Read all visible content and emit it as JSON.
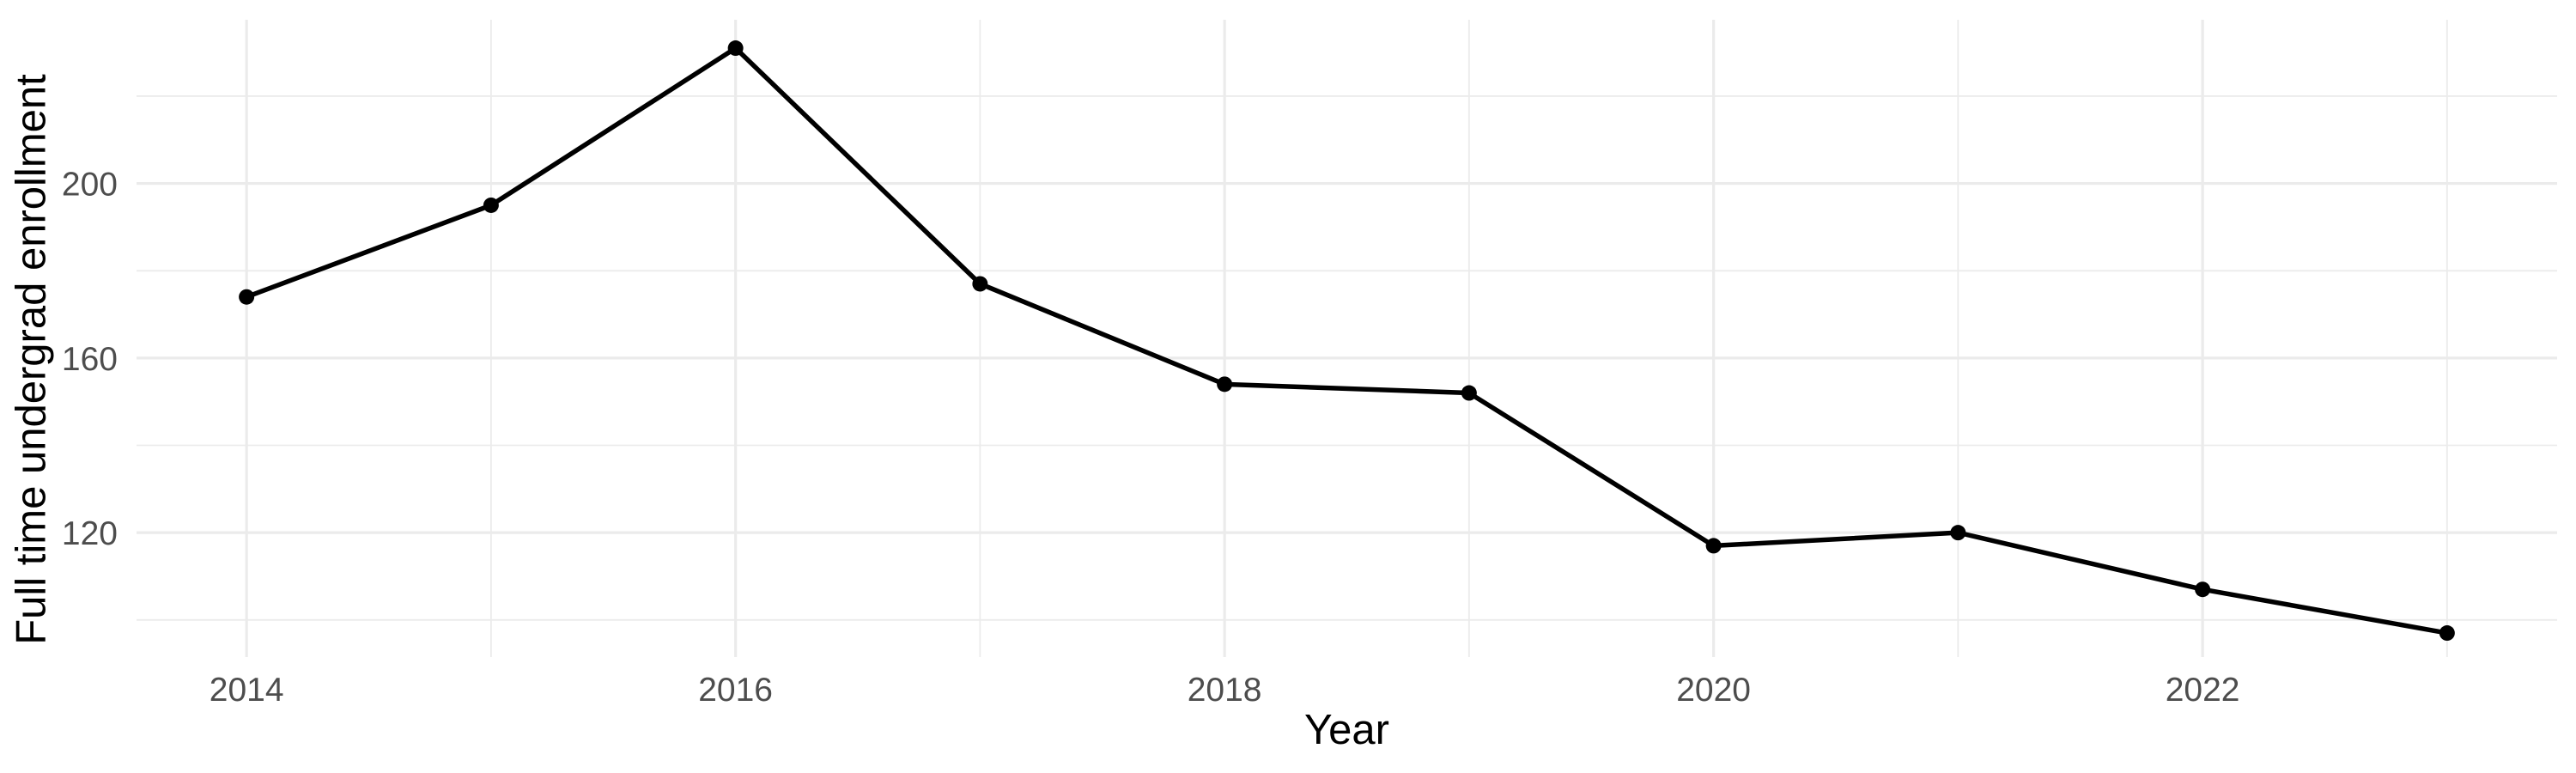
{
  "chart_data": {
    "type": "line",
    "title": "",
    "xlabel": "Year",
    "ylabel": "Full time undergrad enrollment",
    "series": [
      {
        "name": "Full time undergrad enrollment",
        "x": [
          2014,
          2015,
          2016,
          2017,
          2018,
          2019,
          2020,
          2021,
          2022,
          2023
        ],
        "y": [
          174,
          195,
          231,
          177,
          154,
          152,
          117,
          120,
          107,
          97
        ]
      }
    ],
    "xlim": [
      2013.55,
      2023.45
    ],
    "ylim": [
      91.5,
      237.5
    ],
    "x_ticks": [
      2014,
      2016,
      2018,
      2020,
      2022
    ],
    "y_ticks": [
      120,
      160,
      200
    ],
    "x_minor_gridlines": [
      2015,
      2017,
      2019,
      2021,
      2023
    ],
    "y_minor_gridlines": [
      100,
      140,
      180,
      220
    ],
    "grid": true,
    "legend": false,
    "marker": "filled-circle",
    "colors": {
      "line": "#000000",
      "point": "#000000",
      "grid": "#EBEBEB",
      "tick_label": "#4D4D4D",
      "axis_title": "#000000",
      "background": "#FFFFFF"
    }
  }
}
